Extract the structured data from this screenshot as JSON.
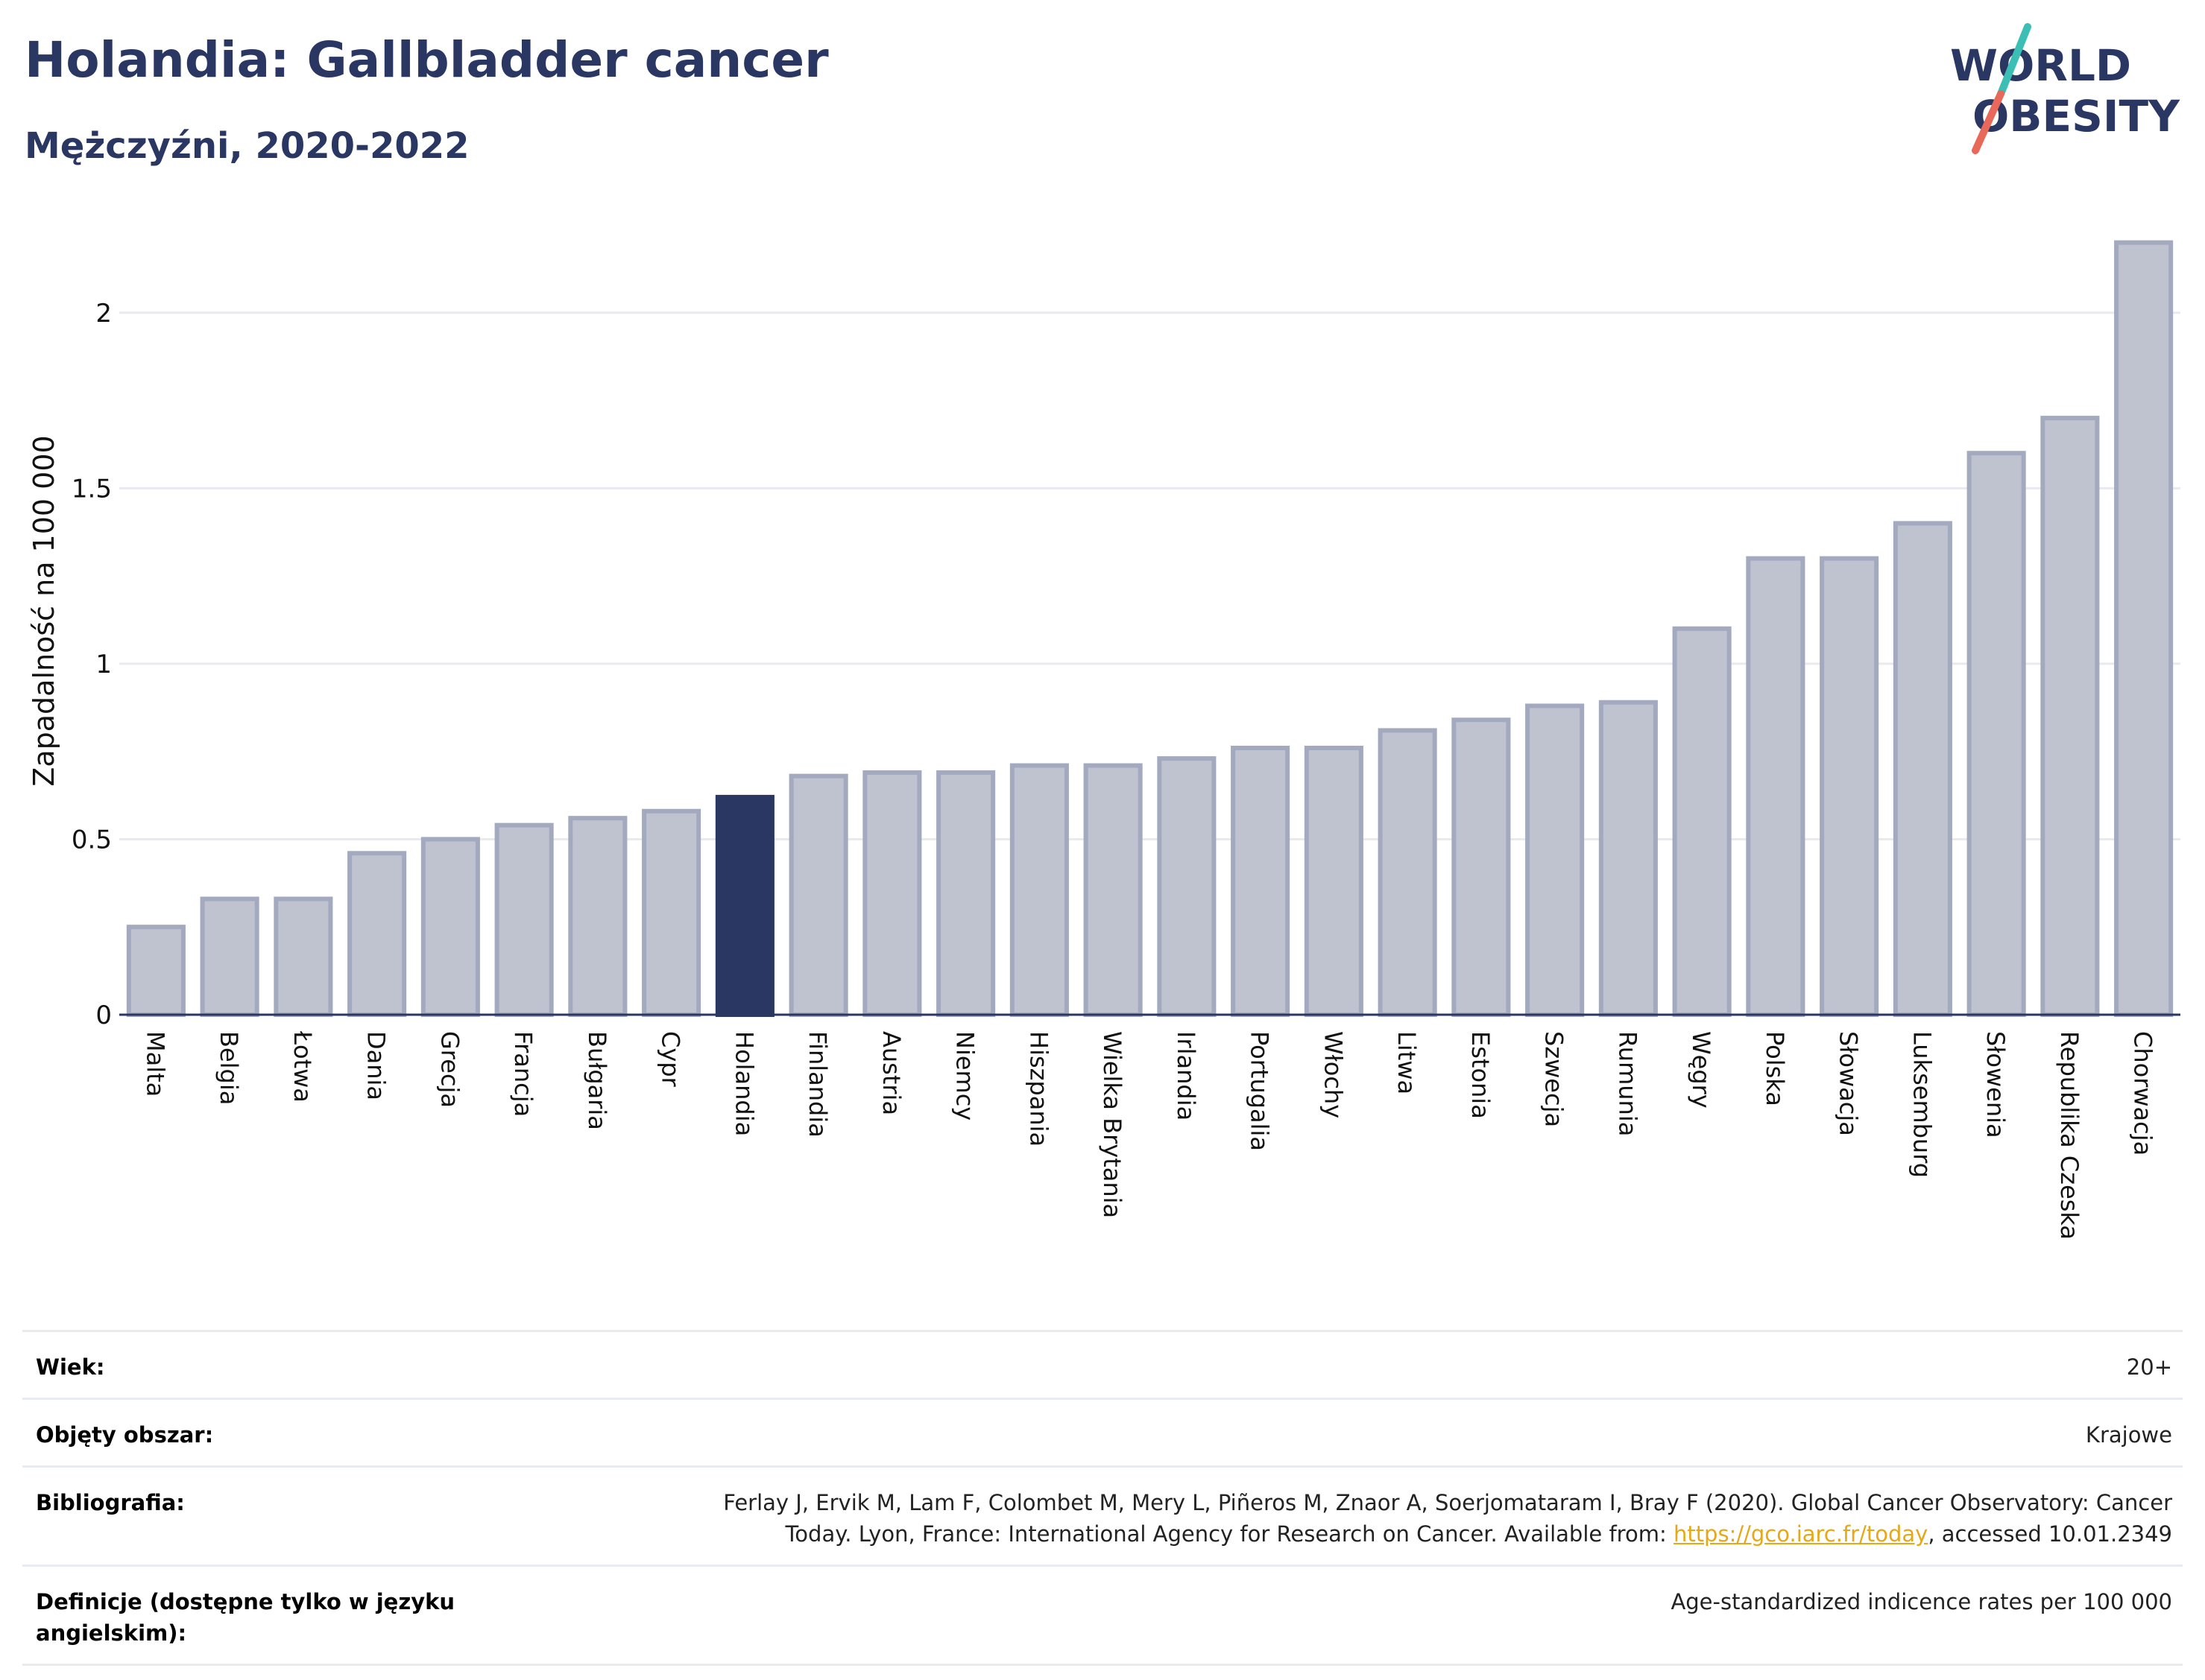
{
  "header": {
    "title": "Holandia: Gallbladder cancer",
    "subtitle": "Mężczyźni, 2020-2022"
  },
  "logo": {
    "line1": "WORLD",
    "line2": "OBESITY",
    "slash_colors": [
      "#3bbfb4",
      "#e8685a"
    ]
  },
  "colors": {
    "text": "#2b3763",
    "highlight_bar": "#2b3763",
    "bar_fill": "#bfc3d0",
    "bar_edge": "#a3a9be",
    "grid": "#e8eaf0",
    "link": "#e6a817"
  },
  "chart_data": {
    "type": "bar",
    "ylabel": "Zapadalność na 100 000",
    "ylim": [
      0,
      2.25
    ],
    "yticks": [
      0,
      0.5,
      1,
      1.5,
      2
    ],
    "ytick_labels": [
      "0",
      "0.5",
      "1",
      "1.5",
      "2"
    ],
    "grid": true,
    "highlight": "Holandia",
    "categories": [
      "Malta",
      "Belgia",
      "Łotwa",
      "Dania",
      "Grecja",
      "Francja",
      "Bułgaria",
      "Cypr",
      "Holandia",
      "Finlandia",
      "Austria",
      "Niemcy",
      "Hiszpania",
      "Wielka Brytania",
      "Irlandia",
      "Portugalia",
      "Włochy",
      "Litwa",
      "Estonia",
      "Szwecja",
      "Rumunia",
      "Węgry",
      "Polska",
      "Słowacja",
      "Luksemburg",
      "Słowenia",
      "Republika Czeska",
      "Chorwacja"
    ],
    "values": [
      0.25,
      0.33,
      0.33,
      0.46,
      0.5,
      0.54,
      0.56,
      0.58,
      0.62,
      0.68,
      0.69,
      0.69,
      0.71,
      0.71,
      0.73,
      0.76,
      0.76,
      0.81,
      0.84,
      0.88,
      0.89,
      1.1,
      1.3,
      1.3,
      1.4,
      1.6,
      1.7,
      2.2
    ]
  },
  "table": {
    "age_label": "Wiek:",
    "age_value": "20+",
    "coverage_label": "Objęty obszar:",
    "coverage_value": "Krajowe",
    "bibliography_label": "Bibliografia:",
    "bibliography_line1": "Ferlay J, Ervik M, Lam F, Colombet M, Mery L, Piñeros M, Znaor A, Soerjomataram I, Bray F (2020). Global Cancer Observatory: Cancer",
    "bibliography_line2_pre": "Today. Lyon, France: International Agency for Research on Cancer. Available from: ",
    "bibliography_link": "https://gco.iarc.fr/today",
    "bibliography_line2_post": ", accessed 10.01.2349",
    "definitions_label": "Definicje (dostępne tylko w języku angielskim):",
    "definitions_value": "Age-standardized indicence rates per 100 000"
  }
}
